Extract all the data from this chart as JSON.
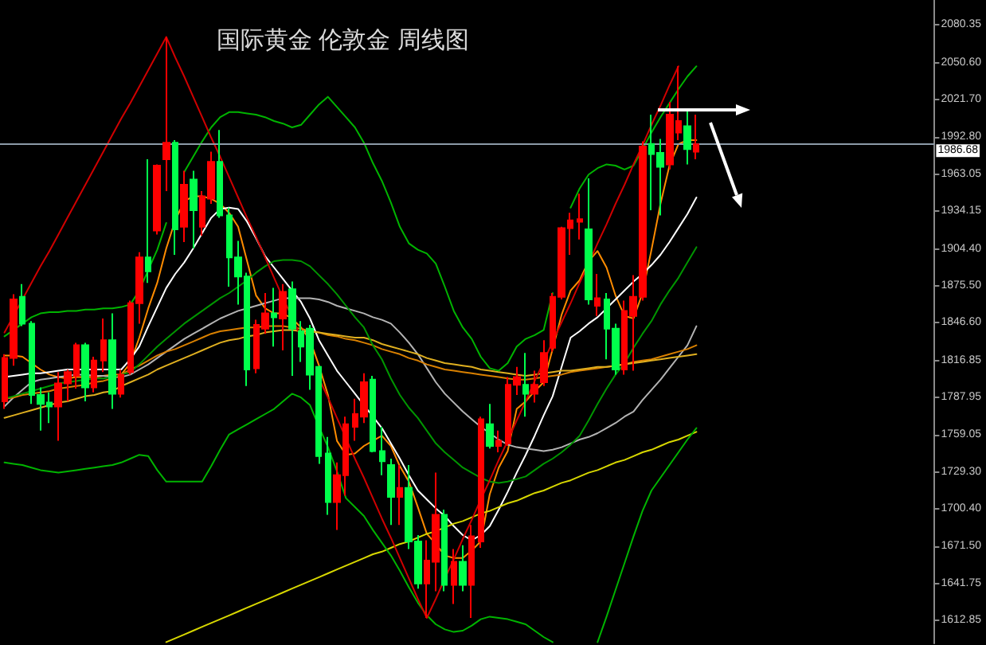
{
  "chart_data": {
    "type": "candlestick",
    "title": "国际黄金 伦敦金 周线图",
    "categories": [
      null,
      null,
      null,
      null,
      null,
      null,
      null,
      null,
      null,
      null,
      null,
      null,
      null,
      null,
      null,
      null,
      null,
      null,
      null,
      null,
      null,
      null,
      null,
      null,
      null,
      null,
      null,
      null,
      null,
      null,
      null,
      null,
      null,
      null,
      null,
      null,
      null,
      null,
      null,
      null,
      null,
      null,
      null,
      null,
      null,
      null,
      null,
      null,
      null,
      null,
      null,
      null,
      null,
      null,
      null,
      null,
      null,
      null,
      null,
      null,
      null,
      null,
      null,
      null,
      null,
      null,
      null,
      null,
      null,
      null,
      null,
      null,
      null,
      null,
      null,
      null,
      null,
      null,
      null,
      null,
      null,
      null,
      null,
      null,
      null,
      null,
      null,
      null,
      null,
      null,
      null,
      null,
      null,
      null,
      null,
      null,
      null,
      null,
      null,
      null,
      null,
      null,
      null,
      null
    ],
    "ohlc": [
      [
        1785,
        1822,
        1779,
        1819
      ],
      [
        1819,
        1869,
        1813,
        1865
      ],
      [
        1867,
        1877,
        1844,
        1846
      ],
      [
        1846,
        1848,
        1783,
        1790
      ],
      [
        1790,
        1796,
        1762,
        1783
      ],
      [
        1784,
        1792,
        1768,
        1781
      ],
      [
        1781,
        1808,
        1754,
        1799
      ],
      [
        1799,
        1810,
        1785,
        1808
      ],
      [
        1805,
        1831,
        1795,
        1829
      ],
      [
        1829,
        1831,
        1785,
        1796
      ],
      [
        1796,
        1820,
        1792,
        1817
      ],
      [
        1817,
        1850,
        1808,
        1833
      ],
      [
        1833,
        1854,
        1779,
        1791
      ],
      [
        1791,
        1810,
        1788,
        1806
      ],
      [
        1808,
        1864,
        1806,
        1862
      ],
      [
        1862,
        1902,
        1846,
        1898
      ],
      [
        1898,
        1975,
        1878,
        1887
      ],
      [
        1919,
        1971,
        1916,
        1970
      ],
      [
        1975,
        2071,
        1950,
        1988
      ],
      [
        1988,
        1990,
        1900,
        1920
      ],
      [
        1922,
        1966,
        1910,
        1955
      ],
      [
        1959,
        1966,
        1905,
        1935
      ],
      [
        1922,
        1950,
        1915,
        1946
      ],
      [
        1944,
        1981,
        1940,
        1973
      ],
      [
        1973,
        1998,
        1929,
        1931
      ],
      [
        1931,
        1937,
        1875,
        1898
      ],
      [
        1898,
        1911,
        1861,
        1883
      ],
      [
        1883,
        1886,
        1797,
        1810
      ],
      [
        1811,
        1849,
        1807,
        1845
      ],
      [
        1842,
        1870,
        1838,
        1854
      ],
      [
        1854,
        1874,
        1828,
        1851
      ],
      [
        1850,
        1877,
        1825,
        1871
      ],
      [
        1873,
        1879,
        1805,
        1842
      ],
      [
        1840,
        1848,
        1816,
        1828
      ],
      [
        1842,
        1845,
        1794,
        1806
      ],
      [
        1812,
        1813,
        1736,
        1742
      ],
      [
        1744,
        1757,
        1696,
        1706
      ],
      [
        1706,
        1737,
        1684,
        1727
      ],
      [
        1727,
        1773,
        1711,
        1767
      ],
      [
        1765,
        1787,
        1754,
        1775
      ],
      [
        1773,
        1807,
        1768,
        1800
      ],
      [
        1802,
        1805,
        1745,
        1746
      ],
      [
        1746,
        1765,
        1727,
        1738
      ],
      [
        1735,
        1740,
        1688,
        1710
      ],
      [
        1710,
        1735,
        1688,
        1717
      ],
      [
        1717,
        1735,
        1669,
        1675
      ],
      [
        1675,
        1680,
        1638,
        1642
      ],
      [
        1642,
        1676,
        1615,
        1660
      ],
      [
        1659,
        1729,
        1636,
        1696
      ],
      [
        1696,
        1700,
        1636,
        1641
      ],
      [
        1641,
        1669,
        1626,
        1659
      ],
      [
        1659,
        1672,
        1636,
        1641
      ],
      [
        1641,
        1688,
        1615,
        1679
      ],
      [
        1675,
        1773,
        1670,
        1771
      ],
      [
        1767,
        1783,
        1748,
        1750
      ],
      [
        1750,
        1762,
        1745,
        1754
      ],
      [
        1752,
        1804,
        1750,
        1798
      ],
      [
        1798,
        1812,
        1790,
        1804
      ],
      [
        1798,
        1823,
        1773,
        1791
      ],
      [
        1791,
        1809,
        1784,
        1798
      ],
      [
        1800,
        1833,
        1797,
        1823
      ],
      [
        1827,
        1870,
        1824,
        1867
      ],
      [
        1867,
        1922,
        1865,
        1921
      ],
      [
        1921,
        1933,
        1900,
        1927
      ],
      [
        1926,
        1948,
        1912,
        1928
      ],
      [
        1920,
        1960,
        1861,
        1865
      ],
      [
        1860,
        1885,
        1852,
        1866
      ],
      [
        1865,
        1870,
        1818,
        1842
      ],
      [
        1842,
        1846,
        1806,
        1810
      ],
      [
        1810,
        1864,
        1806,
        1856
      ],
      [
        1852,
        1884,
        1809,
        1867
      ],
      [
        1867,
        1989,
        1864,
        1985
      ],
      [
        1987,
        2010,
        1935,
        1979
      ],
      [
        1980,
        1991,
        1931,
        1969
      ],
      [
        1971,
        2020,
        1967,
        2010
      ],
      [
        1996,
        2048,
        1990,
        2005
      ],
      [
        2001,
        2015,
        1971,
        1983
      ],
      [
        1981,
        2010,
        1975,
        1986.68
      ],
      null,
      null,
      null,
      null,
      null,
      null,
      null,
      null,
      null,
      null,
      null,
      null,
      null,
      null,
      null,
      null,
      null,
      null,
      null,
      null,
      null,
      null,
      null,
      null,
      null,
      null
    ],
    "colors": [
      "#ff0000",
      "#ff0000",
      "#00ff4c",
      "#00ff4c",
      "#00ff4c",
      "#00ff4c",
      "#ff0000",
      "#ff0000",
      "#ff0000",
      "#00ff4c",
      "#ff0000",
      "#ff0000",
      "#00ff4c",
      "#ff0000",
      "#ff0000",
      "#ff0000",
      "#00ff4c",
      "#ff0000",
      "#ff0000",
      "#00ff4c",
      "#ff0000",
      "#00ff4c",
      "#ff0000",
      "#ff0000",
      "#00ff4c",
      "#00ff4c",
      "#00ff4c",
      "#00ff4c",
      "#ff0000",
      "#ff0000",
      "#00ff4c",
      "#ff0000",
      "#00ff4c",
      "#00ff4c",
      "#00ff4c",
      "#00ff4c",
      "#00ff4c",
      "#ff0000",
      "#ff0000",
      "#ff0000",
      "#ff0000",
      "#00ff4c",
      "#00ff4c",
      "#00ff4c",
      "#ff0000",
      "#00ff4c",
      "#00ff4c",
      "#ff0000",
      "#ff0000",
      "#00ff4c",
      "#ff0000",
      "#00ff4c",
      "#ff0000",
      "#ff0000",
      "#00ff4c",
      "#ff0000",
      "#ff0000",
      "#ff0000",
      "#00ff4c",
      "#ff0000",
      "#ff0000",
      "#ff0000",
      "#ff0000",
      "#ff0000",
      "#ff0000",
      "#00ff4c",
      "#ff0000",
      "#00ff4c",
      "#00ff4c",
      "#ff0000",
      "#ff0000",
      "#ff0000",
      "#00ff4c",
      "#00ff4c",
      "#ff0000",
      "#ff0000",
      "#00ff4c",
      "#ff0000",
      null,
      null,
      null,
      null,
      null,
      null,
      null,
      null,
      null,
      null,
      null,
      null,
      null,
      null,
      null,
      null,
      null,
      null,
      null,
      null,
      null,
      null,
      null,
      null,
      null,
      null
    ],
    "series": [
      {
        "type": "line",
        "color": "#ff8c00",
        "values": [
          1821,
          1821,
          1820,
          1815,
          1810,
          1806,
          1804,
          1803,
          1804,
          1804,
          1804,
          1805,
          1806,
          1806,
          1815,
          1835,
          1858,
          1878,
          1905,
          1927,
          1942,
          1946,
          1946,
          1944,
          1940,
          1933,
          1922,
          1895,
          1868,
          1858,
          1854,
          1854,
          1850,
          1843,
          1833,
          1813,
          1790,
          1754,
          1743,
          1744,
          1750,
          1754,
          1758,
          1750,
          1734,
          1722,
          1702,
          1681,
          1673,
          1664,
          1662,
          1662,
          1668,
          1675,
          1712,
          1733,
          1746,
          1779,
          1785,
          1793,
          1800,
          1826,
          1853,
          1872,
          1880,
          1895,
          1903,
          1890,
          1868,
          1852,
          1850,
          1870,
          1904,
          1940,
          1970,
          1987,
          1990,
          1990,
          null,
          null,
          null,
          null,
          null,
          null,
          null,
          null,
          null,
          null,
          null,
          null,
          null,
          null,
          null,
          null,
          null,
          null,
          null,
          null,
          null,
          null,
          null,
          null,
          null,
          null
        ]
      },
      {
        "type": "line",
        "color": "#ffffff",
        "values": [
          1804,
          1805,
          1806,
          1807,
          1807,
          1808,
          1809,
          1810,
          1810,
          1810,
          1810,
          1810,
          1810,
          1810,
          1818,
          1828,
          1844,
          1859,
          1874,
          1885,
          1894,
          1905,
          1917,
          1929,
          1936,
          1937,
          1936,
          1926,
          1913,
          1899,
          1890,
          1881,
          1872,
          1863,
          1850,
          1833,
          1821,
          1809,
          1800,
          1791,
          1782,
          1773,
          1764,
          1752,
          1740,
          1727,
          1715,
          1708,
          1701,
          1695,
          1687,
          1680,
          1676,
          1680,
          1687,
          1700,
          1714,
          1729,
          1743,
          1758,
          1774,
          1789,
          1812,
          1835,
          1840,
          1846,
          1851,
          1858,
          1865,
          1872,
          1879,
          1885,
          1892,
          1900,
          1910,
          1921,
          1932,
          1945,
          null,
          null,
          null,
          null,
          null,
          null,
          null,
          null,
          null,
          null,
          null,
          null,
          null,
          null,
          null,
          null,
          null,
          null,
          null,
          null,
          null,
          null,
          null,
          null,
          null,
          null
        ]
      },
      {
        "type": "line",
        "color": "#b4b4b4",
        "values": [
          1781,
          1788,
          1794,
          1800,
          1802,
          1803,
          1804,
          1805,
          1806,
          1806,
          1805,
          1805,
          1804,
          1804,
          1806,
          1810,
          1814,
          1819,
          1824,
          1829,
          1834,
          1838,
          1842,
          1846,
          1850,
          1853,
          1856,
          1858,
          1860,
          1862,
          1864,
          1866,
          1866,
          1866,
          1866,
          1865,
          1863,
          1860,
          1858,
          1856,
          1854,
          1851,
          1849,
          1846,
          1839,
          1831,
          1822,
          1811,
          1800,
          1791,
          1784,
          1777,
          1771,
          1765,
          1760,
          1755,
          1751,
          1749,
          1748,
          1747,
          1746,
          1747,
          1749,
          1752,
          1755,
          1757,
          1760,
          1764,
          1768,
          1773,
          1777,
          1786,
          1794,
          1802,
          1811,
          1820,
          1829,
          1844,
          null,
          null,
          null,
          null,
          null,
          null,
          null,
          null,
          null,
          null,
          null,
          null,
          null,
          null,
          null,
          null,
          null,
          null,
          null,
          null,
          null,
          null,
          null,
          null,
          null,
          null
        ]
      },
      {
        "type": "line",
        "color": "#d98000",
        "values": [
          1787,
          1788,
          1790,
          1791,
          1792,
          1793,
          1795,
          1796,
          1797,
          1798,
          1800,
          1801,
          1803,
          1806,
          1810,
          1813,
          1817,
          1821,
          1824,
          1826,
          1829,
          1832,
          1835,
          1838,
          1840,
          1841,
          1842,
          1843,
          1843,
          1844,
          1844,
          1844,
          1843,
          1842,
          1840,
          1839,
          1837,
          1836,
          1834,
          1833,
          1831,
          1829,
          1826,
          1824,
          1822,
          1819,
          1817,
          1814,
          1812,
          1810,
          1809,
          1808,
          1807,
          1806,
          1805,
          1804,
          1803,
          1802,
          1802,
          1803,
          1804,
          1805,
          1806,
          1808,
          1809,
          1810,
          1811,
          1812,
          1813,
          1814,
          1816,
          1817,
          1818,
          1820,
          1822,
          1824,
          1826,
          1829,
          null,
          null,
          null,
          null,
          null,
          null,
          null,
          null,
          null,
          null,
          null,
          null,
          null,
          null,
          null,
          null,
          null,
          null,
          null,
          null,
          null,
          null,
          null,
          null,
          null,
          null
        ]
      },
      {
        "type": "line",
        "color": "#e0b020",
        "values": [
          1772,
          1774,
          1776,
          1778,
          1780,
          1782,
          1784,
          1785,
          1787,
          1789,
          1790,
          1792,
          1793,
          1797,
          1800,
          1803,
          1806,
          1810,
          1813,
          1816,
          1819,
          1822,
          1825,
          1828,
          1831,
          1833,
          1834,
          1836,
          1837,
          1839,
          1840,
          1841,
          1841,
          1840,
          1840,
          1839,
          1838,
          1837,
          1836,
          1835,
          1835,
          1833,
          1830,
          1828,
          1826,
          1824,
          1822,
          1819,
          1817,
          1815,
          1814,
          1813,
          1812,
          1810,
          1809,
          1808,
          1807,
          1806,
          1805,
          1806,
          1807,
          1808,
          1809,
          1809,
          1810,
          1811,
          1812,
          1812,
          1813,
          1814,
          1815,
          1816,
          1817,
          1818,
          1819,
          1820,
          1821,
          1822,
          null,
          null,
          null,
          null,
          null,
          null,
          null,
          null,
          null,
          null,
          null,
          null,
          null,
          null,
          null,
          null,
          null,
          null,
          null,
          null,
          null,
          null,
          null,
          null,
          null,
          null
        ]
      },
      {
        "type": "line",
        "color": "#d8d800",
        "values": [
          null,
          null,
          null,
          null,
          null,
          null,
          null,
          null,
          null,
          null,
          null,
          null,
          null,
          null,
          null,
          null,
          null,
          null,
          1596,
          1599,
          1602,
          1605,
          1608,
          1611,
          1614,
          1617,
          1620,
          1623,
          1626,
          1629,
          1632,
          1635,
          1638,
          1641,
          1644,
          1647,
          1650,
          1653,
          1656,
          1659,
          1662,
          1665,
          1667,
          1670,
          1673,
          1675,
          1678,
          1681,
          1683,
          1686,
          1689,
          1691,
          1694,
          1697,
          1699,
          1702,
          1705,
          1707,
          1710,
          1713,
          1715,
          1718,
          1721,
          1723,
          1726,
          1729,
          1731,
          1734,
          1737,
          1739,
          1742,
          1745,
          1747,
          1750,
          1753,
          1755,
          1758,
          1761,
          null,
          null,
          null,
          null,
          null,
          null,
          null,
          null,
          null,
          null,
          null,
          null,
          null,
          null,
          null,
          null,
          null,
          null,
          null,
          null,
          null,
          null,
          null,
          null,
          null,
          null
        ]
      },
      {
        "type": "line",
        "color": "#00b400",
        "values": [
          1836,
          1841,
          1846,
          1851,
          1854,
          1855,
          1855,
          1856,
          1856,
          1857,
          1857,
          1858,
          1858,
          1859,
          1861,
          1872,
          1888,
          1904,
          1925,
          null,
          1965,
          1977,
          1989,
          2000,
          2008,
          2012,
          2012,
          2011,
          2010,
          2008,
          2005,
          2003,
          2000,
          2002,
          2010,
          2018,
          2024,
          2016,
          2008,
          2000,
          1988,
          1972,
          1958,
          1941,
          1922,
          1909,
          1904,
          1901,
          1893,
          1875,
          1856,
          1843,
          1834,
          1820,
          1811,
          1809,
          1815,
          1828,
          1834,
          1837,
          1841,
          1870,
          null,
          1937,
          1952,
          1963,
          1968,
          1971,
          1970,
          1967,
          1970,
          1983,
          1996,
          2008,
          2019,
          2030,
          2040,
          2048,
          null,
          null,
          null,
          null,
          null,
          null,
          null,
          null,
          null,
          null,
          null,
          null,
          null,
          null,
          null,
          null,
          null,
          null,
          null,
          null,
          null,
          null,
          null,
          null,
          null,
          null
        ]
      },
      {
        "type": "line",
        "color": "#009600",
        "values": [
          1787,
          1789,
          1791,
          1793,
          1795,
          1797,
          1799,
          1800,
          1801,
          1802,
          1803,
          1803,
          1804,
          1806,
          1808,
          1814,
          1821,
          1828,
          1834,
          1840,
          1846,
          1851,
          1856,
          1861,
          1866,
          1870,
          1875,
          1880,
          1886,
          1891,
          1895,
          1896,
          1896,
          1895,
          1891,
          1884,
          1877,
          1869,
          1860,
          1851,
          1843,
          1829,
          1818,
          1803,
          1790,
          1780,
          1772,
          1762,
          1752,
          1745,
          1739,
          1733,
          1729,
          1725,
          1722,
          1721,
          1722,
          1724,
          1726,
          1731,
          1736,
          1740,
          1745,
          1751,
          1758,
          1770,
          1783,
          1795,
          1806,
          1815,
          1827,
          1838,
          1848,
          1861,
          1872,
          1882,
          1894,
          1906,
          null,
          null,
          null,
          null,
          null,
          null,
          null,
          null,
          null,
          null,
          null,
          null,
          null,
          null,
          null,
          null,
          null,
          null,
          null,
          null,
          null,
          null,
          null,
          null,
          null,
          null
        ]
      },
      {
        "type": "line",
        "color": "#00b400",
        "values": [
          1737,
          1736,
          1735,
          1733,
          1731,
          1730,
          1729,
          1730,
          1731,
          1732,
          1733,
          1734,
          1735,
          1737,
          1740,
          1743,
          1742,
          1731,
          1722,
          1722,
          1722,
          1722,
          1722,
          1734,
          1747,
          1759,
          1763,
          1767,
          1771,
          1775,
          1779,
          1785,
          1791,
          1788,
          1782,
          1765,
          1749,
          1730,
          1709,
          1702,
          1695,
          1684,
          1674,
          1664,
          1652,
          1639,
          1627,
          1617,
          1610,
          1606,
          1604,
          1605,
          1609,
          1614,
          1616,
          1615,
          1614,
          1612,
          1610,
          1605,
          1600,
          1596,
          null,
          null,
          null,
          null,
          1596,
          1616,
          1637,
          1658,
          1679,
          1699,
          1715,
          1725,
          1735,
          1745,
          1755,
          1764,
          null,
          null,
          null,
          null,
          null,
          null,
          null,
          null,
          null,
          null,
          null,
          null,
          null,
          null,
          null,
          null,
          null,
          null,
          null,
          null,
          null,
          null,
          null,
          null,
          null,
          null
        ]
      },
      {
        "type": "line",
        "color": "#d00000",
        "values": [
          1839,
          1852,
          1865,
          1878,
          1891,
          1903,
          1916,
          1929,
          1942,
          1955,
          1968,
          1981,
          1994,
          2007,
          2019,
          2032,
          2045,
          2058,
          2071,
          2055,
          2040,
          2024,
          2008,
          1992,
          1977,
          1961,
          1945,
          1929,
          1914,
          1898,
          1882,
          1866,
          1851,
          1835,
          null,
          1803,
          1788,
          1772,
          1756,
          1740,
          1725,
          1709,
          1693,
          1678,
          1662,
          1646,
          1630,
          1615,
          1630,
          1646,
          1661,
          1677,
          1692,
          1708,
          1723,
          1739,
          1754,
          1770,
          1785,
          1801,
          1816,
          1832,
          1847,
          1862,
          1878,
          1893,
          1909,
          1924,
          1940,
          1955,
          1971,
          1986,
          2002,
          2017,
          2033,
          2048,
          null,
          null,
          null,
          null,
          null,
          null,
          null,
          null,
          null,
          null,
          null,
          null,
          null,
          null,
          null,
          null,
          null,
          null,
          null,
          null,
          null,
          null,
          null,
          null,
          null,
          null,
          null,
          null
        ]
      }
    ],
    "ylim": [
      1595,
      2100
    ],
    "yticks": [
      2080.35,
      {
        "value": 2050.6,
        "label": "2050.60"
      },
      {
        "value": 2021.7,
        "label": "2021.70"
      },
      {
        "value": 1992.8,
        "label": "1992.80"
      },
      1963.05,
      1934.15,
      {
        "value": 1904.4,
        "label": "1904.40"
      },
      {
        "value": 1875.5,
        "label": "1875.50"
      },
      {
        "value": 1846.6,
        "label": "1846.60"
      },
      1816.85,
      1787.95,
      1759.05,
      {
        "value": 1729.3,
        "label": "1729.30"
      },
      {
        "value": 1700.4,
        "label": "1700.40"
      },
      {
        "value": 1671.5,
        "label": "1671.50"
      },
      1641.75,
      1612.85
    ],
    "ref_lines": [
      {
        "axis": "y",
        "value": 1986.68,
        "label": "1986.68",
        "color": "#8c9aa8"
      }
    ],
    "tick_labels": "y",
    "marker": "none",
    "line_style": "solid"
  }
}
